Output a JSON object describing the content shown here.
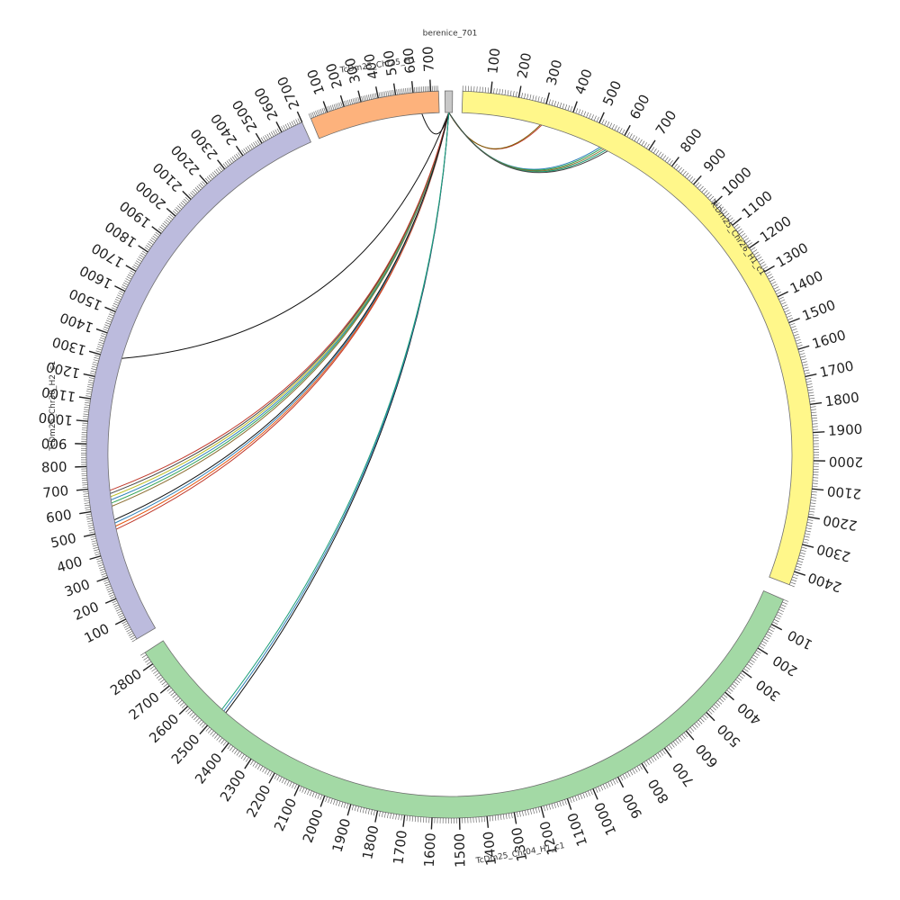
{
  "chart_data": {
    "type": "circos",
    "segments": [
      {
        "id": "berenice_701",
        "name": "berenice_701",
        "color": "#c8c8c8",
        "length": 1,
        "start_deg": -0.8,
        "end_deg": 0.4,
        "tick_major": 0,
        "tick_minor": 0
      },
      {
        "id": "chr26",
        "name": "TcDm25_Chr26_H1_c1",
        "color": "#fff78a",
        "length": 2450,
        "start_deg": 2.0,
        "end_deg": 111.0,
        "tick_major": 100,
        "tick_minor": 10
      },
      {
        "id": "chr04",
        "name": "TcDm25_Chr04_H1_c1",
        "color": "#a3d9a5",
        "length": 2850,
        "start_deg": 113.5,
        "end_deg": 237.0,
        "tick_major": 100,
        "tick_minor": 10
      },
      {
        "id": "chr30",
        "name": "TcDm25_Chr30_H2_c1",
        "color": "#bcbbdd",
        "length": 2700,
        "start_deg": 239.5,
        "end_deg": 358.5,
        "tick_major": 100,
        "tick_minor": 10
      },
      {
        "id": "chr25",
        "name": "TcDm25_Chr25_H1",
        "color": "#fdb27c",
        "length": 745,
        "start_deg": 0,
        "end_deg": 0,
        "tick_major": 100,
        "tick_minor": 10
      }
    ],
    "segment_labels": {
      "berenice_701": "berenice_701",
      "chr25": "TcDm25_Chr25_H1",
      "chr26": "TcDm25_Chr26_H1_c1",
      "chr04": "TcDm25_Chr04_H1_c1",
      "chr30": "TcDm25_Chr30_H2_c1"
    },
    "links": [
      {
        "from": "berenice_701",
        "to": "chr26",
        "to_pos": 305,
        "color": "#c0392b"
      },
      {
        "from": "berenice_701",
        "to": "chr26",
        "to_pos": 300,
        "color": "#7a5a00"
      },
      {
        "from": "berenice_701",
        "to": "chr26",
        "to_pos": 540,
        "color": "#2c7fb8"
      },
      {
        "from": "berenice_701",
        "to": "chr26",
        "to_pos": 548,
        "color": "#31a354"
      },
      {
        "from": "berenice_701",
        "to": "chr26",
        "to_pos": 556,
        "color": "#8c6d31"
      },
      {
        "from": "berenice_701",
        "to": "chr26",
        "to_pos": 564,
        "color": "#1b9e77"
      },
      {
        "from": "berenice_701",
        "to": "chr26",
        "to_pos": 572,
        "color": "#444444"
      },
      {
        "from": "berenice_701",
        "to": "chr25",
        "to_pos": 640,
        "color": "#111111"
      },
      {
        "from": "berenice_701",
        "to": "chr30",
        "to_pos": 1310,
        "color": "#111111"
      },
      {
        "from": "berenice_701",
        "to": "chr30",
        "to_pos": 610,
        "color": "#8c6d31"
      },
      {
        "from": "berenice_701",
        "to": "chr30",
        "to_pos": 625,
        "color": "#31a354"
      },
      {
        "from": "berenice_701",
        "to": "chr30",
        "to_pos": 640,
        "color": "#2c7fb8"
      },
      {
        "from": "berenice_701",
        "to": "chr30",
        "to_pos": 655,
        "color": "#bcbd22"
      },
      {
        "from": "berenice_701",
        "to": "chr30",
        "to_pos": 670,
        "color": "#444444"
      },
      {
        "from": "berenice_701",
        "to": "chr30",
        "to_pos": 685,
        "color": "#c0392b"
      },
      {
        "from": "berenice_701",
        "to": "chr30",
        "to_pos": 500,
        "color": "#c0392b"
      },
      {
        "from": "berenice_701",
        "to": "chr30",
        "to_pos": 515,
        "color": "#e6550d"
      },
      {
        "from": "berenice_701",
        "to": "chr30",
        "to_pos": 530,
        "color": "#2c7fb8"
      },
      {
        "from": "berenice_701",
        "to": "chr30",
        "to_pos": 545,
        "color": "#111111"
      },
      {
        "from": "berenice_701",
        "to": "chr04",
        "to_pos": 2480,
        "color": "#111111"
      },
      {
        "from": "berenice_701",
        "to": "chr04",
        "to_pos": 2490,
        "color": "#2c7fb8"
      },
      {
        "from": "berenice_701",
        "to": "chr04",
        "to_pos": 2500,
        "color": "#1b9e77"
      }
    ]
  }
}
